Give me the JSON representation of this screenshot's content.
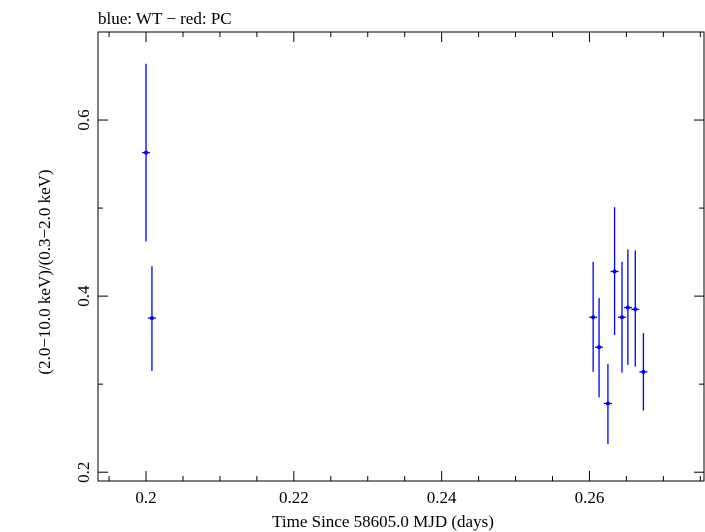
{
  "chart_data": {
    "type": "scatter",
    "title": "blue: WT − red: PC",
    "xlabel": "Time Since 58605.0 MJD (days)",
    "ylabel": "(2.0−10.0 keV)/(0.3−2.0 keV)",
    "xlim": [
      0.1935,
      0.2755
    ],
    "ylim": [
      0.19,
      0.7
    ],
    "x_ticks": [
      0.2,
      0.22,
      0.24,
      0.26
    ],
    "x_tick_labels": [
      "0.2",
      "0.22",
      "0.24",
      "0.26"
    ],
    "y_major_ticks": [
      0.2,
      0.4,
      0.6
    ],
    "y_tick_labels": [
      "0.2",
      "0.4",
      "0.6"
    ],
    "y_minor_ticks": [
      0.3,
      0.5
    ],
    "grid": false,
    "series": [
      {
        "color": "#0000ff",
        "points": [
          {
            "x": 0.2,
            "y": 0.563,
            "ylo": 0.462,
            "yhi": 0.664
          },
          {
            "x": 0.2008,
            "y": 0.375,
            "ylo": 0.315,
            "yhi": 0.434
          },
          {
            "x": 0.2605,
            "y": 0.376,
            "ylo": 0.314,
            "yhi": 0.439
          },
          {
            "x": 0.2613,
            "y": 0.342,
            "ylo": 0.285,
            "yhi": 0.398
          },
          {
            "x": 0.2625,
            "y": 0.278,
            "ylo": 0.232,
            "yhi": 0.323
          },
          {
            "x": 0.2634,
            "y": 0.428,
            "ylo": 0.356,
            "yhi": 0.501
          },
          {
            "x": 0.2644,
            "y": 0.376,
            "ylo": 0.313,
            "yhi": 0.439
          },
          {
            "x": 0.2652,
            "y": 0.387,
            "ylo": 0.322,
            "yhi": 0.453
          },
          {
            "x": 0.2662,
            "y": 0.385,
            "ylo": 0.32,
            "yhi": 0.452
          },
          {
            "x": 0.2673,
            "y": 0.314,
            "ylo": 0.27,
            "yhi": 0.358
          }
        ]
      }
    ]
  }
}
